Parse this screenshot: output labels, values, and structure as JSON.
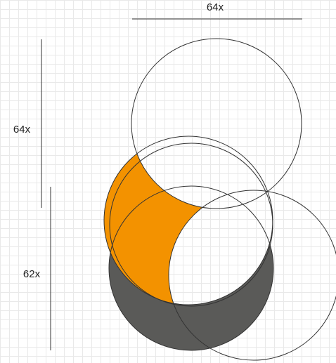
{
  "diagram": {
    "dimensions": {
      "top_width_label": "64x",
      "left_height_label": "64x",
      "left_lower_height_label": "62x"
    },
    "colors": {
      "grid_line": "#e9e9e9",
      "stroke": "#333333",
      "highlight_fill": "#f39200",
      "shadow_fill": "#5a5a58",
      "background": "#ffffff"
    }
  }
}
